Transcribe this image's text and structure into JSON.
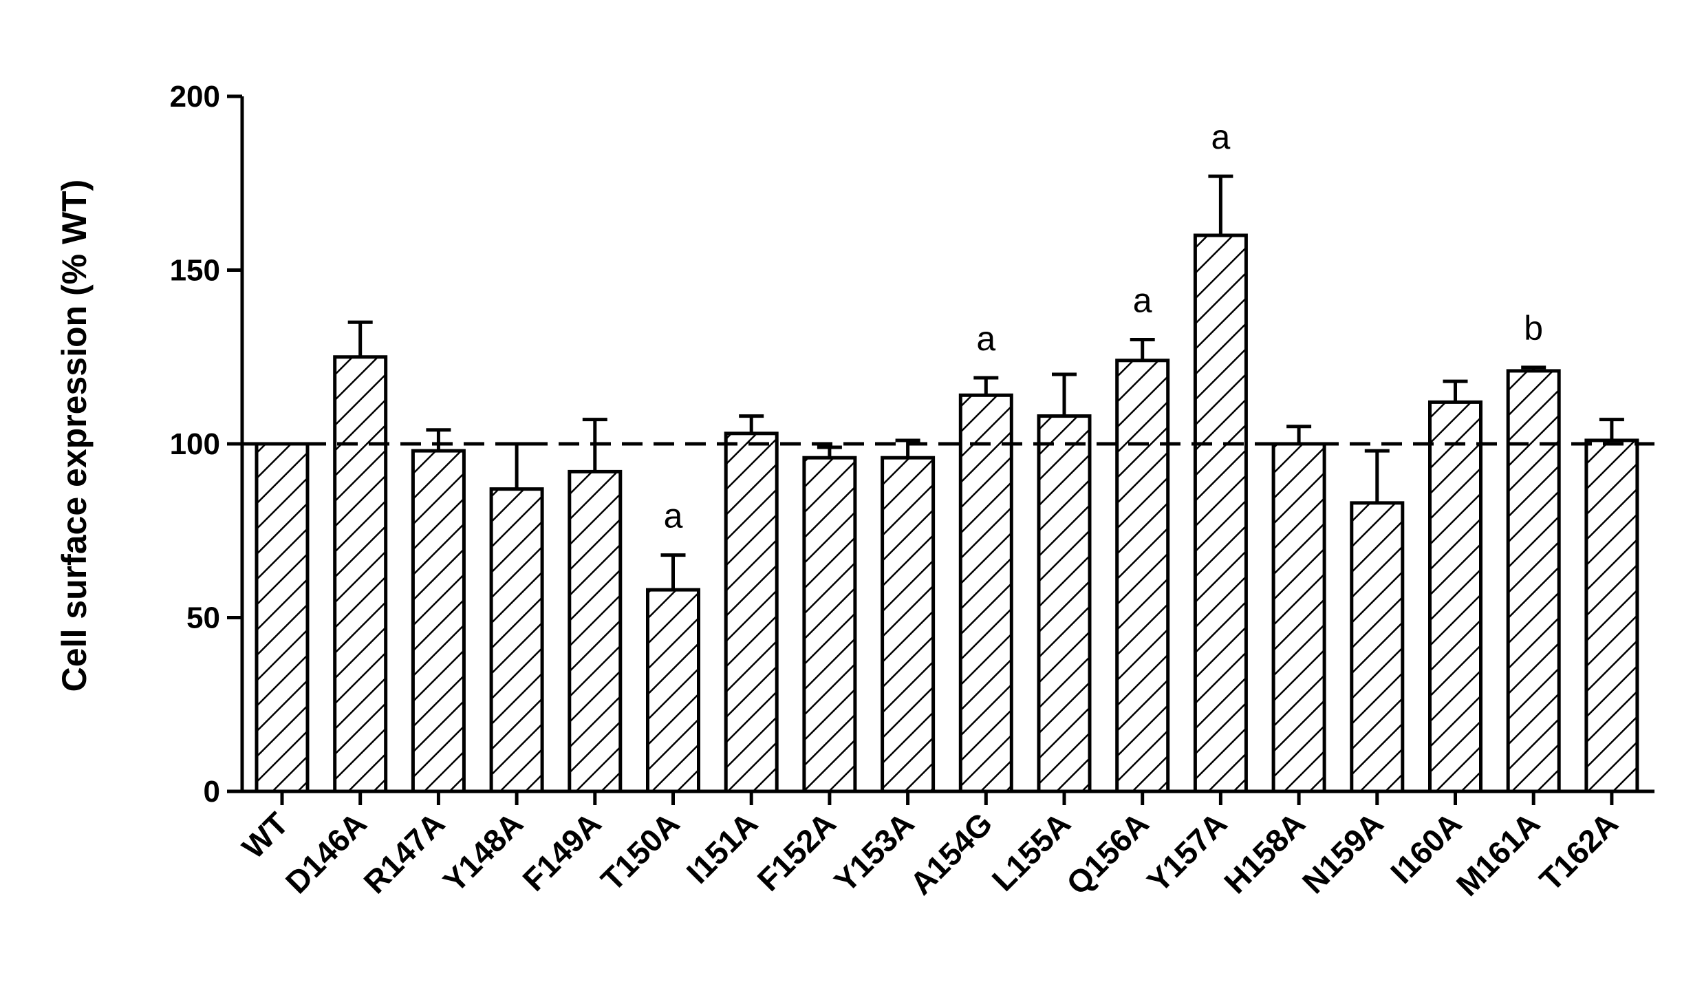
{
  "chart_data": {
    "type": "bar",
    "title": "",
    "xlabel": "",
    "ylabel": "Cell surface expression (% WT)",
    "ylim": [
      0,
      200
    ],
    "yticks": [
      0,
      50,
      100,
      150,
      200
    ],
    "grid": false,
    "legend": "none",
    "reference_line": {
      "y": 100,
      "style": "dashed"
    },
    "bar_fill": "diagonal-hatch",
    "colors": {
      "stroke": "#000000",
      "fill": "#ffffff"
    },
    "categories": [
      "WT",
      "D146A",
      "R147A",
      "Y148A",
      "F149A",
      "T150A",
      "I151A",
      "F152A",
      "Y153A",
      "A154G",
      "L155A",
      "Q156A",
      "Y157A",
      "H158A",
      "N159A",
      "I160A",
      "M161A",
      "T162A"
    ],
    "values": [
      100,
      125,
      98,
      87,
      92,
      58,
      103,
      96,
      96,
      114,
      108,
      124,
      160,
      100,
      83,
      112,
      121,
      101
    ],
    "errors": [
      0,
      10,
      6,
      13,
      15,
      10,
      5,
      3,
      5,
      5,
      12,
      6,
      17,
      5,
      15,
      6,
      1,
      6
    ],
    "annotations": [
      "",
      "",
      "",
      "",
      "",
      "a",
      "",
      "",
      "",
      "a",
      "",
      "a",
      "a",
      "",
      "",
      "",
      "b",
      ""
    ]
  }
}
